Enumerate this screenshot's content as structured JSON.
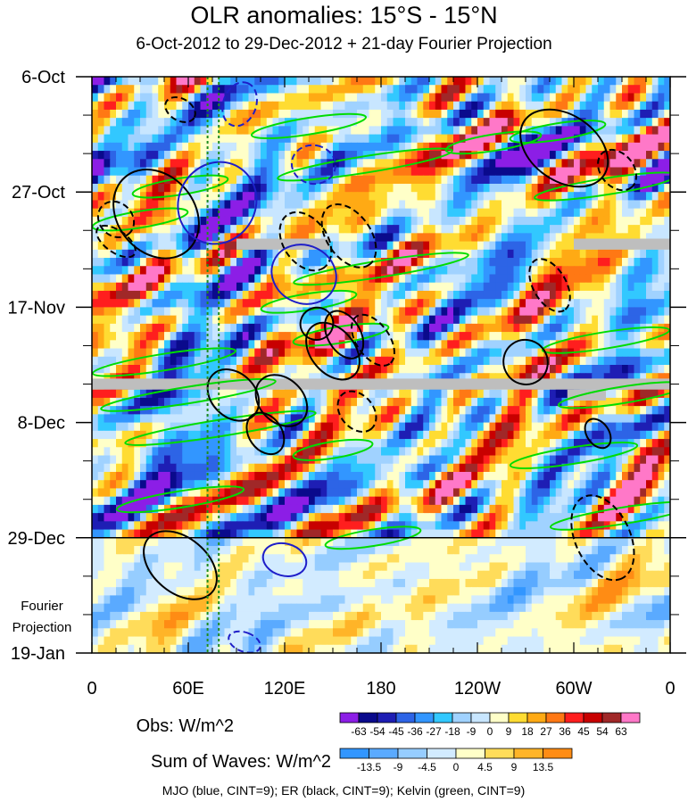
{
  "chart_data": {
    "type": "heatmap",
    "title": "OLR anomalies: 15°S - 15°N",
    "subtitle": "6-Oct-2012 to 29-Dec-2012 + 21-day Fourier Projection",
    "x_ticks": [
      "0",
      "60E",
      "120E",
      "180",
      "120W",
      "60W",
      "0"
    ],
    "x_tick_values": [
      0,
      60,
      120,
      180,
      240,
      300,
      360
    ],
    "y_ticks": [
      "6-Oct",
      "27-Oct",
      "17-Nov",
      "8-Dec",
      "29-Dec",
      "19-Jan"
    ],
    "y_tick_days": [
      0,
      21,
      42,
      63,
      84,
      105
    ],
    "ylim_days": [
      0,
      105
    ],
    "xlim_deg_east": [
      0,
      360
    ],
    "projection_start_day": 84,
    "projection_label": [
      "Fourier",
      "Projection"
    ],
    "obs_colorbar": {
      "label": "Obs: W/m^2",
      "levels": [
        -63,
        -54,
        -45,
        -36,
        -27,
        -18,
        -9,
        0,
        9,
        18,
        27,
        36,
        45,
        54,
        63
      ],
      "colors": [
        "#8c1ee6",
        "#0a0a8c",
        "#1e1eb4",
        "#2d64e6",
        "#3296ff",
        "#32c8ff",
        "#a0d2ff",
        "#c8e6ff",
        "#ffffc8",
        "#ffdc32",
        "#ffaa14",
        "#ff7814",
        "#ff1e1e",
        "#c80000",
        "#a02828",
        "#ff78c8"
      ]
    },
    "waves_colorbar": {
      "label": "Sum of Waves: W/m^2",
      "levels": [
        -13.5,
        -9,
        -4.5,
        0,
        4.5,
        9,
        13.5
      ],
      "colors": [
        "#3296ff",
        "#5aaaff",
        "#96cdff",
        "#d2ebff",
        "#ffffc8",
        "#ffdc5a",
        "#ffb428",
        "#ff8c14"
      ]
    },
    "footnote": "MJO (blue, CINT=9); ER (black, CINT=9); Kelvin (green, CINT=9)",
    "mjo_color": "#1e1ec8",
    "er_color": "#000000",
    "kelvin_color": "#00dc00",
    "missing_color": "#bebebe",
    "missing_data": [
      {
        "day_from": 29.5,
        "day_to": 31.5,
        "lon_from": 90,
        "lon_to": 148
      },
      {
        "day_from": 29.5,
        "day_to": 31.5,
        "lon_from": 300,
        "lon_to": 360
      },
      {
        "day_from": 55,
        "day_to": 57,
        "lon_from": 0,
        "lon_to": 360
      },
      {
        "day_from": 57,
        "day_to": 59,
        "lon_from": 296,
        "lon_to": 320
      }
    ],
    "reference_lines": [
      {
        "lon": 72,
        "style": "dotted",
        "color": "#1e8c1e"
      },
      {
        "lon": 79,
        "style": "dotted",
        "color": "#1e8c1e"
      }
    ],
    "mjo_contours": [
      {
        "lon": 78,
        "day": 23,
        "rx": 26,
        "ry": 7,
        "angle": 60,
        "dashed": false
      },
      {
        "lon": 132,
        "day": 36,
        "rx": 18,
        "ry": 6,
        "angle": 65,
        "dashed": false
      },
      {
        "lon": 92,
        "day": 5,
        "rx": 14,
        "ry": 3,
        "angle": 70,
        "dashed": true
      },
      {
        "lon": 138,
        "day": 16,
        "rx": 12,
        "ry": 4,
        "angle": 80,
        "dashed": true
      },
      {
        "lon": 120,
        "day": 88,
        "rx": 10,
        "ry": 4,
        "angle": 75,
        "dashed": false
      },
      {
        "lon": 95,
        "day": 103,
        "rx": 6,
        "ry": 3,
        "angle": 70,
        "dashed": true
      }
    ],
    "er_contours": [
      {
        "lon": 40,
        "day": 25,
        "rx": 30,
        "ry": 7,
        "angle": -50,
        "dashed": false
      },
      {
        "lon": 15,
        "day": 26,
        "rx": 12,
        "ry": 3,
        "angle": -45,
        "dashed": true
      },
      {
        "lon": 55,
        "day": 6,
        "rx": 10,
        "ry": 2,
        "angle": -30,
        "dashed": true
      },
      {
        "lon": 133,
        "day": 30,
        "rx": 20,
        "ry": 4,
        "angle": -55,
        "dashed": true
      },
      {
        "lon": 160,
        "day": 29,
        "rx": 22,
        "ry": 4,
        "angle": -55,
        "dashed": true
      },
      {
        "lon": 140,
        "day": 45,
        "rx": 10,
        "ry": 3,
        "angle": -60,
        "dashed": false
      },
      {
        "lon": 157,
        "day": 47,
        "rx": 16,
        "ry": 3,
        "angle": -60,
        "dashed": false
      },
      {
        "lon": 150,
        "day": 50,
        "rx": 20,
        "ry": 4,
        "angle": -50,
        "dashed": false
      },
      {
        "lon": 175,
        "day": 48,
        "rx": 18,
        "ry": 3,
        "angle": -55,
        "dashed": true
      },
      {
        "lon": 118,
        "day": 59,
        "rx": 18,
        "ry": 4,
        "angle": -45,
        "dashed": false
      },
      {
        "lon": 88,
        "day": 58,
        "rx": 18,
        "ry": 4,
        "angle": -45,
        "dashed": false
      },
      {
        "lon": 108,
        "day": 65,
        "rx": 14,
        "ry": 3,
        "angle": -55,
        "dashed": false
      },
      {
        "lon": 165,
        "day": 61,
        "rx": 14,
        "ry": 3,
        "angle": -50,
        "dashed": true
      },
      {
        "lon": 294,
        "day": 13,
        "rx": 30,
        "ry": 6,
        "angle": -35,
        "dashed": false
      },
      {
        "lon": 327,
        "day": 17,
        "rx": 14,
        "ry": 3,
        "angle": -50,
        "dashed": true
      },
      {
        "lon": 285,
        "day": 38,
        "rx": 18,
        "ry": 3,
        "angle": -60,
        "dashed": true
      },
      {
        "lon": 270,
        "day": 52,
        "rx": 14,
        "ry": 4,
        "angle": -55,
        "dashed": false
      },
      {
        "lon": 315,
        "day": 65,
        "rx": 10,
        "ry": 2,
        "angle": -55,
        "dashed": false
      },
      {
        "lon": 318,
        "day": 84,
        "rx": 28,
        "ry": 5,
        "angle": -65,
        "dashed": true
      },
      {
        "lon": 55,
        "day": 89,
        "rx": 26,
        "ry": 5,
        "angle": -40,
        "dashed": false
      },
      {
        "lon": 15,
        "day": 30,
        "rx": 14,
        "ry": 2,
        "angle": -35,
        "dashed": true
      }
    ],
    "kelvin_contours": [
      {
        "lon": 135,
        "day": 9,
        "rx": 36,
        "ry": 1.5,
        "angle": 9
      },
      {
        "lon": 250,
        "day": 12,
        "rx": 30,
        "ry": 1.5,
        "angle": 9
      },
      {
        "lon": 290,
        "day": 10,
        "rx": 30,
        "ry": 1.5,
        "angle": 9
      },
      {
        "lon": 170,
        "day": 16,
        "rx": 55,
        "ry": 1.5,
        "angle": 9
      },
      {
        "lon": 320,
        "day": 20,
        "rx": 45,
        "ry": 1.5,
        "angle": 9
      },
      {
        "lon": 55,
        "day": 20,
        "rx": 30,
        "ry": 1.5,
        "angle": 9
      },
      {
        "lon": 30,
        "day": 26,
        "rx": 30,
        "ry": 1.5,
        "angle": 9
      },
      {
        "lon": 180,
        "day": 35,
        "rx": 55,
        "ry": 1.5,
        "angle": 9
      },
      {
        "lon": 135,
        "day": 41,
        "rx": 30,
        "ry": 1.5,
        "angle": 9
      },
      {
        "lon": 155,
        "day": 47,
        "rx": 30,
        "ry": 1.5,
        "angle": 9
      },
      {
        "lon": 45,
        "day": 52,
        "rx": 45,
        "ry": 1.5,
        "angle": 9
      },
      {
        "lon": 60,
        "day": 58,
        "rx": 55,
        "ry": 1.5,
        "angle": 9
      },
      {
        "lon": 330,
        "day": 58,
        "rx": 40,
        "ry": 1.5,
        "angle": 9
      },
      {
        "lon": 80,
        "day": 64,
        "rx": 60,
        "ry": 1.5,
        "angle": 9
      },
      {
        "lon": 150,
        "day": 68,
        "rx": 25,
        "ry": 1.5,
        "angle": 9
      },
      {
        "lon": 300,
        "day": 69,
        "rx": 40,
        "ry": 1.5,
        "angle": 9
      },
      {
        "lon": 55,
        "day": 77,
        "rx": 40,
        "ry": 1.5,
        "angle": 9
      },
      {
        "lon": 330,
        "day": 80,
        "rx": 45,
        "ry": 1.5,
        "angle": 9
      },
      {
        "lon": 175,
        "day": 84,
        "rx": 30,
        "ry": 1.5,
        "angle": 9
      },
      {
        "lon": 320,
        "day": 48,
        "rx": 40,
        "ry": 1.5,
        "angle": 9
      }
    ]
  }
}
